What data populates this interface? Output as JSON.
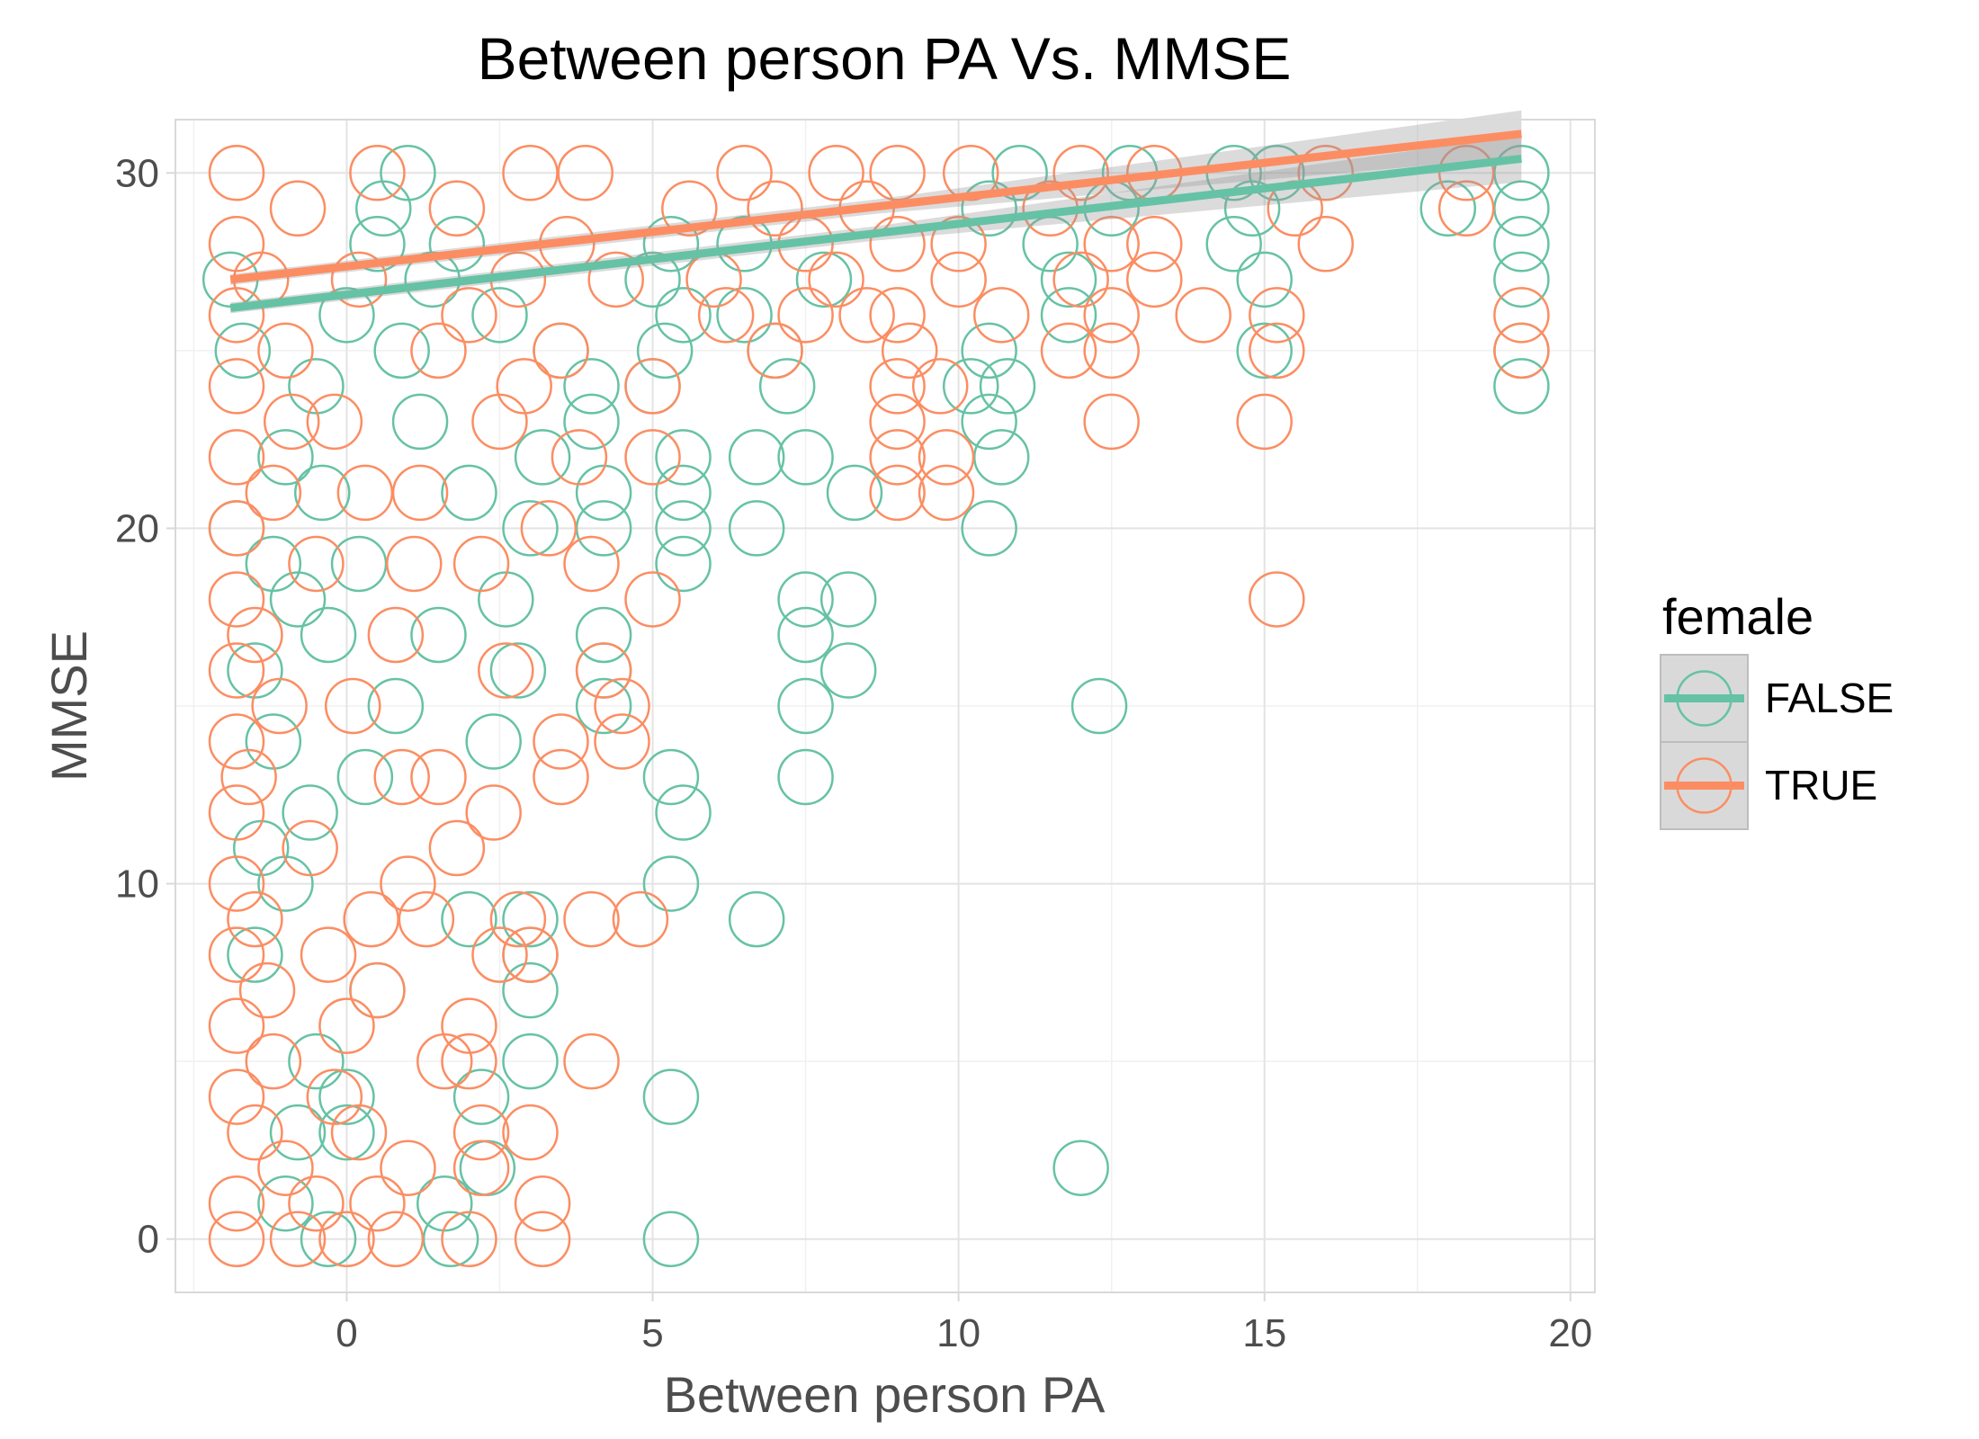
{
  "chart_data": {
    "type": "scatter",
    "title": "Between person PA Vs. MMSE",
    "xlabel": "Between person PA",
    "ylabel": "MMSE",
    "xlim": [
      -2.8,
      20.4
    ],
    "ylim": [
      -1.5,
      31.5
    ],
    "x_ticks": [
      0,
      5,
      10,
      15,
      20
    ],
    "x_tick_labels": [
      "0",
      "5",
      "10",
      "15",
      "20"
    ],
    "y_ticks": [
      0,
      10,
      20,
      30
    ],
    "y_tick_labels": [
      "0",
      "10",
      "20",
      "30"
    ],
    "grid": true,
    "legend": {
      "title": "female",
      "position": "right"
    },
    "series": [
      {
        "name": "FALSE",
        "color": "#66c2a5",
        "trend": {
          "x": [
            -1.9,
            19.2
          ],
          "y": [
            26.2,
            30.4
          ]
        },
        "points": [
          [
            19.2,
            30
          ],
          [
            19.2,
            29
          ],
          [
            19.2,
            28
          ],
          [
            19.2,
            27
          ],
          [
            19.2,
            25
          ],
          [
            19.2,
            24
          ],
          [
            14.5,
            30
          ],
          [
            14.5,
            28
          ],
          [
            15.0,
            27
          ],
          [
            15.2,
            30
          ],
          [
            15.0,
            25
          ],
          [
            14.8,
            29
          ],
          [
            18.0,
            29
          ],
          [
            12.0,
            2
          ],
          [
            12.3,
            15
          ],
          [
            10.5,
            20
          ],
          [
            10.7,
            22
          ],
          [
            10.5,
            23
          ],
          [
            10.5,
            25
          ],
          [
            10.2,
            24
          ],
          [
            10.8,
            24
          ],
          [
            11.8,
            26
          ],
          [
            11.8,
            27
          ],
          [
            11.5,
            28
          ],
          [
            11.0,
            30
          ],
          [
            10.5,
            29
          ],
          [
            12.8,
            30
          ],
          [
            12.5,
            29
          ],
          [
            7.5,
            18
          ],
          [
            7.5,
            17
          ],
          [
            7.5,
            15
          ],
          [
            7.5,
            13
          ],
          [
            8.2,
            18
          ],
          [
            8.2,
            16
          ],
          [
            8.3,
            21
          ],
          [
            7.5,
            22
          ],
          [
            6.7,
            22
          ],
          [
            6.7,
            20
          ],
          [
            6.7,
            9
          ],
          [
            6.5,
            26
          ],
          [
            6.5,
            28
          ],
          [
            7.2,
            24
          ],
          [
            7.0,
            25
          ],
          [
            7.8,
            27
          ],
          [
            5.5,
            22
          ],
          [
            5.5,
            21
          ],
          [
            5.5,
            20
          ],
          [
            5.5,
            19
          ],
          [
            5.3,
            13
          ],
          [
            5.5,
            12
          ],
          [
            5.3,
            10
          ],
          [
            5.3,
            4
          ],
          [
            5.3,
            0
          ],
          [
            5.0,
            24
          ],
          [
            5.2,
            25
          ],
          [
            5.5,
            26
          ],
          [
            5.0,
            27
          ],
          [
            5.3,
            28
          ],
          [
            4.2,
            21
          ],
          [
            4.2,
            20
          ],
          [
            4.2,
            17
          ],
          [
            4.2,
            16
          ],
          [
            4.2,
            15
          ],
          [
            4.0,
            23
          ],
          [
            4.0,
            24
          ],
          [
            3.0,
            5
          ],
          [
            3.0,
            7
          ],
          [
            3.0,
            8
          ],
          [
            3.0,
            9
          ],
          [
            2.8,
            16
          ],
          [
            2.6,
            18
          ],
          [
            3.0,
            20
          ],
          [
            3.2,
            22
          ],
          [
            3.5,
            25
          ],
          [
            2.3,
            2
          ],
          [
            2.2,
            4
          ],
          [
            1.7,
            0
          ],
          [
            1.6,
            1
          ],
          [
            2.0,
            9
          ],
          [
            2.4,
            14
          ],
          [
            1.5,
            17
          ],
          [
            2.0,
            21
          ],
          [
            2.5,
            26
          ],
          [
            1.8,
            28
          ],
          [
            0.5,
            7
          ],
          [
            0.8,
            15
          ],
          [
            0.3,
            13
          ],
          [
            0.0,
            3
          ],
          [
            -0.5,
            5
          ],
          [
            -0.3,
            0
          ],
          [
            0.0,
            4
          ],
          [
            -0.6,
            12
          ],
          [
            -0.8,
            18
          ],
          [
            -1.0,
            10
          ],
          [
            -1.2,
            14
          ],
          [
            -1.5,
            16
          ],
          [
            -1.8,
            20
          ],
          [
            -1.0,
            22
          ],
          [
            -0.5,
            24
          ],
          [
            0.0,
            26
          ],
          [
            0.5,
            28
          ],
          [
            1.0,
            30
          ],
          [
            -1.5,
            8
          ],
          [
            -1.2,
            19
          ],
          [
            -0.4,
            21
          ],
          [
            0.6,
            29
          ],
          [
            1.2,
            23
          ],
          [
            -1.9,
            27
          ],
          [
            -1.7,
            25
          ],
          [
            -1.0,
            1
          ],
          [
            -0.8,
            3
          ],
          [
            -1.4,
            11
          ],
          [
            0.2,
            19
          ],
          [
            0.9,
            25
          ],
          [
            1.4,
            27
          ],
          [
            -0.3,
            17
          ]
        ]
      },
      {
        "name": "TRUE",
        "color": "#fc8d62",
        "trend": {
          "x": [
            -1.9,
            19.2
          ],
          "y": [
            27.0,
            31.1
          ]
        },
        "points": [
          [
            19.2,
            26
          ],
          [
            19.2,
            25
          ],
          [
            18.3,
            29
          ],
          [
            18.3,
            30
          ],
          [
            16.0,
            28
          ],
          [
            16.0,
            30
          ],
          [
            15.5,
            29
          ],
          [
            15.2,
            26
          ],
          [
            15.2,
            25
          ],
          [
            15.0,
            23
          ],
          [
            15.2,
            18
          ],
          [
            14.0,
            26
          ],
          [
            13.2,
            30
          ],
          [
            13.2,
            28
          ],
          [
            13.2,
            27
          ],
          [
            12.5,
            28
          ],
          [
            12.5,
            26
          ],
          [
            12.5,
            25
          ],
          [
            12.5,
            23
          ],
          [
            12.0,
            27
          ],
          [
            12.0,
            30
          ],
          [
            11.8,
            25
          ],
          [
            11.5,
            29
          ],
          [
            10.0,
            27
          ],
          [
            10.0,
            28
          ],
          [
            10.2,
            30
          ],
          [
            10.7,
            26
          ],
          [
            9.8,
            21
          ],
          [
            9.8,
            22
          ],
          [
            9.7,
            24
          ],
          [
            9.2,
            25
          ],
          [
            9.0,
            21
          ],
          [
            9.0,
            22
          ],
          [
            9.0,
            23
          ],
          [
            9.0,
            24
          ],
          [
            9.0,
            26
          ],
          [
            9.0,
            28
          ],
          [
            9.0,
            30
          ],
          [
            8.5,
            26
          ],
          [
            8.5,
            29
          ],
          [
            8.0,
            27
          ],
          [
            8.0,
            30
          ],
          [
            7.5,
            26
          ],
          [
            7.5,
            28
          ],
          [
            7.0,
            25
          ],
          [
            7.0,
            29
          ],
          [
            6.5,
            30
          ],
          [
            6.0,
            27
          ],
          [
            5.0,
            18
          ],
          [
            5.0,
            22
          ],
          [
            5.0,
            24
          ],
          [
            4.8,
            9
          ],
          [
            4.5,
            14
          ],
          [
            4.5,
            15
          ],
          [
            4.2,
            16
          ],
          [
            4.0,
            9
          ],
          [
            4.0,
            5
          ],
          [
            4.0,
            19
          ],
          [
            3.8,
            22
          ],
          [
            3.5,
            13
          ],
          [
            3.5,
            14
          ],
          [
            3.5,
            25
          ],
          [
            3.2,
            0
          ],
          [
            3.2,
            1
          ],
          [
            3.0,
            3
          ],
          [
            3.0,
            8
          ],
          [
            2.8,
            9
          ],
          [
            2.5,
            8
          ],
          [
            2.4,
            12
          ],
          [
            2.2,
            2
          ],
          [
            2.2,
            3
          ],
          [
            2.0,
            5
          ],
          [
            2.0,
            6
          ],
          [
            2.0,
            0
          ],
          [
            1.8,
            11
          ],
          [
            1.5,
            13
          ],
          [
            1.3,
            9
          ],
          [
            1.0,
            10
          ],
          [
            1.0,
            2
          ],
          [
            0.8,
            0
          ],
          [
            0.5,
            7
          ],
          [
            0.5,
            1
          ],
          [
            0.2,
            3
          ],
          [
            0.0,
            6
          ],
          [
            0.0,
            0
          ],
          [
            -0.2,
            4
          ],
          [
            -0.5,
            1
          ],
          [
            -0.8,
            0
          ],
          [
            -1.0,
            2
          ],
          [
            -1.2,
            5
          ],
          [
            -1.5,
            3
          ],
          [
            -1.8,
            0
          ],
          [
            -1.8,
            1
          ],
          [
            -1.8,
            4
          ],
          [
            -1.8,
            6
          ],
          [
            -1.8,
            8
          ],
          [
            -1.8,
            10
          ],
          [
            -1.8,
            12
          ],
          [
            -1.8,
            14
          ],
          [
            -1.8,
            16
          ],
          [
            -1.8,
            18
          ],
          [
            -1.8,
            20
          ],
          [
            -1.8,
            22
          ],
          [
            -1.8,
            24
          ],
          [
            -1.8,
            26
          ],
          [
            -1.8,
            28
          ],
          [
            -1.8,
            30
          ],
          [
            -1.5,
            9
          ],
          [
            -1.5,
            17
          ],
          [
            -1.2,
            21
          ],
          [
            -1.0,
            25
          ],
          [
            -0.8,
            29
          ],
          [
            -0.5,
            19
          ],
          [
            -0.2,
            23
          ],
          [
            0.2,
            27
          ],
          [
            0.5,
            30
          ],
          [
            0.8,
            17
          ],
          [
            1.2,
            21
          ],
          [
            1.5,
            25
          ],
          [
            1.8,
            29
          ],
          [
            2.2,
            19
          ],
          [
            2.5,
            23
          ],
          [
            2.8,
            27
          ],
          [
            3.0,
            30
          ],
          [
            3.3,
            20
          ],
          [
            3.6,
            28
          ],
          [
            -1.3,
            7
          ],
          [
            -0.6,
            11
          ],
          [
            0.1,
            15
          ],
          [
            0.9,
            13
          ],
          [
            -1.6,
            13
          ],
          [
            -1.1,
            15
          ],
          [
            0.4,
            9
          ],
          [
            -0.3,
            8
          ],
          [
            1.6,
            5
          ],
          [
            2.6,
            16
          ],
          [
            4.4,
            27
          ],
          [
            5.6,
            29
          ],
          [
            6.2,
            26
          ],
          [
            -1.4,
            27
          ],
          [
            -0.9,
            23
          ],
          [
            0.3,
            21
          ],
          [
            1.1,
            19
          ],
          [
            2.0,
            26
          ],
          [
            2.9,
            24
          ],
          [
            3.9,
            30
          ]
        ]
      }
    ]
  }
}
